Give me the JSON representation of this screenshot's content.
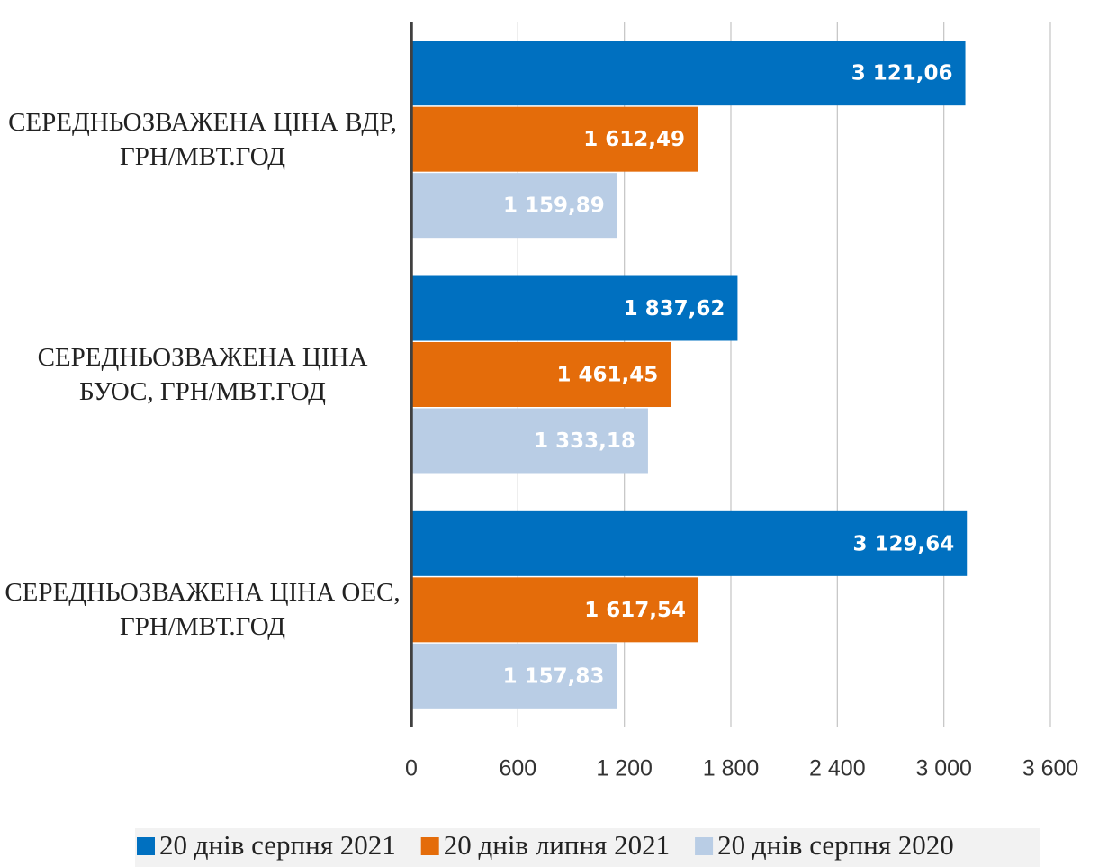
{
  "chart_data": {
    "type": "bar",
    "orientation": "horizontal",
    "categories": [
      "СЕРЕДНЬОЗВАЖЕНА ЦІНА ВДР, ГРН/МВТ.ГОД",
      "СЕРЕДНЬОЗВАЖЕНА ЦІНА БУОС, ГРН/МВТ.ГОД",
      "СЕРЕДНЬОЗВАЖЕНА ЦІНА ОЕС, ГРН/МВТ.ГОД"
    ],
    "series": [
      {
        "name": "20 днів серпня 2021",
        "color": "#0070c0",
        "values": [
          3121.06,
          1837.62,
          3129.64
        ],
        "value_labels": [
          "3 121,06",
          "1 837,62",
          "3 129,64"
        ]
      },
      {
        "name": "20 днів липня 2021",
        "color": "#e46c0a",
        "values": [
          1612.49,
          1461.45,
          1617.54
        ],
        "value_labels": [
          "1 612,49",
          "1 461,45",
          "1 617,54"
        ]
      },
      {
        "name": "20 днів серпня 2020",
        "color": "#b9cde5",
        "values": [
          1159.89,
          1333.18,
          1157.83
        ],
        "value_labels": [
          "1 159,89",
          "1 333,18",
          "1 157,83"
        ]
      }
    ],
    "xlim": [
      0,
      3600
    ],
    "xticks": [
      0,
      600,
      {
        "value": 1200,
        "label": "1 200"
      },
      {
        "value": 1800,
        "label": "1 800"
      },
      {
        "value": 2400,
        "label": "2 400"
      },
      {
        "value": 3000,
        "label": "3 000"
      },
      {
        "value": 3600,
        "label": "3 600"
      }
    ],
    "grid": true,
    "legend": "bottom"
  }
}
